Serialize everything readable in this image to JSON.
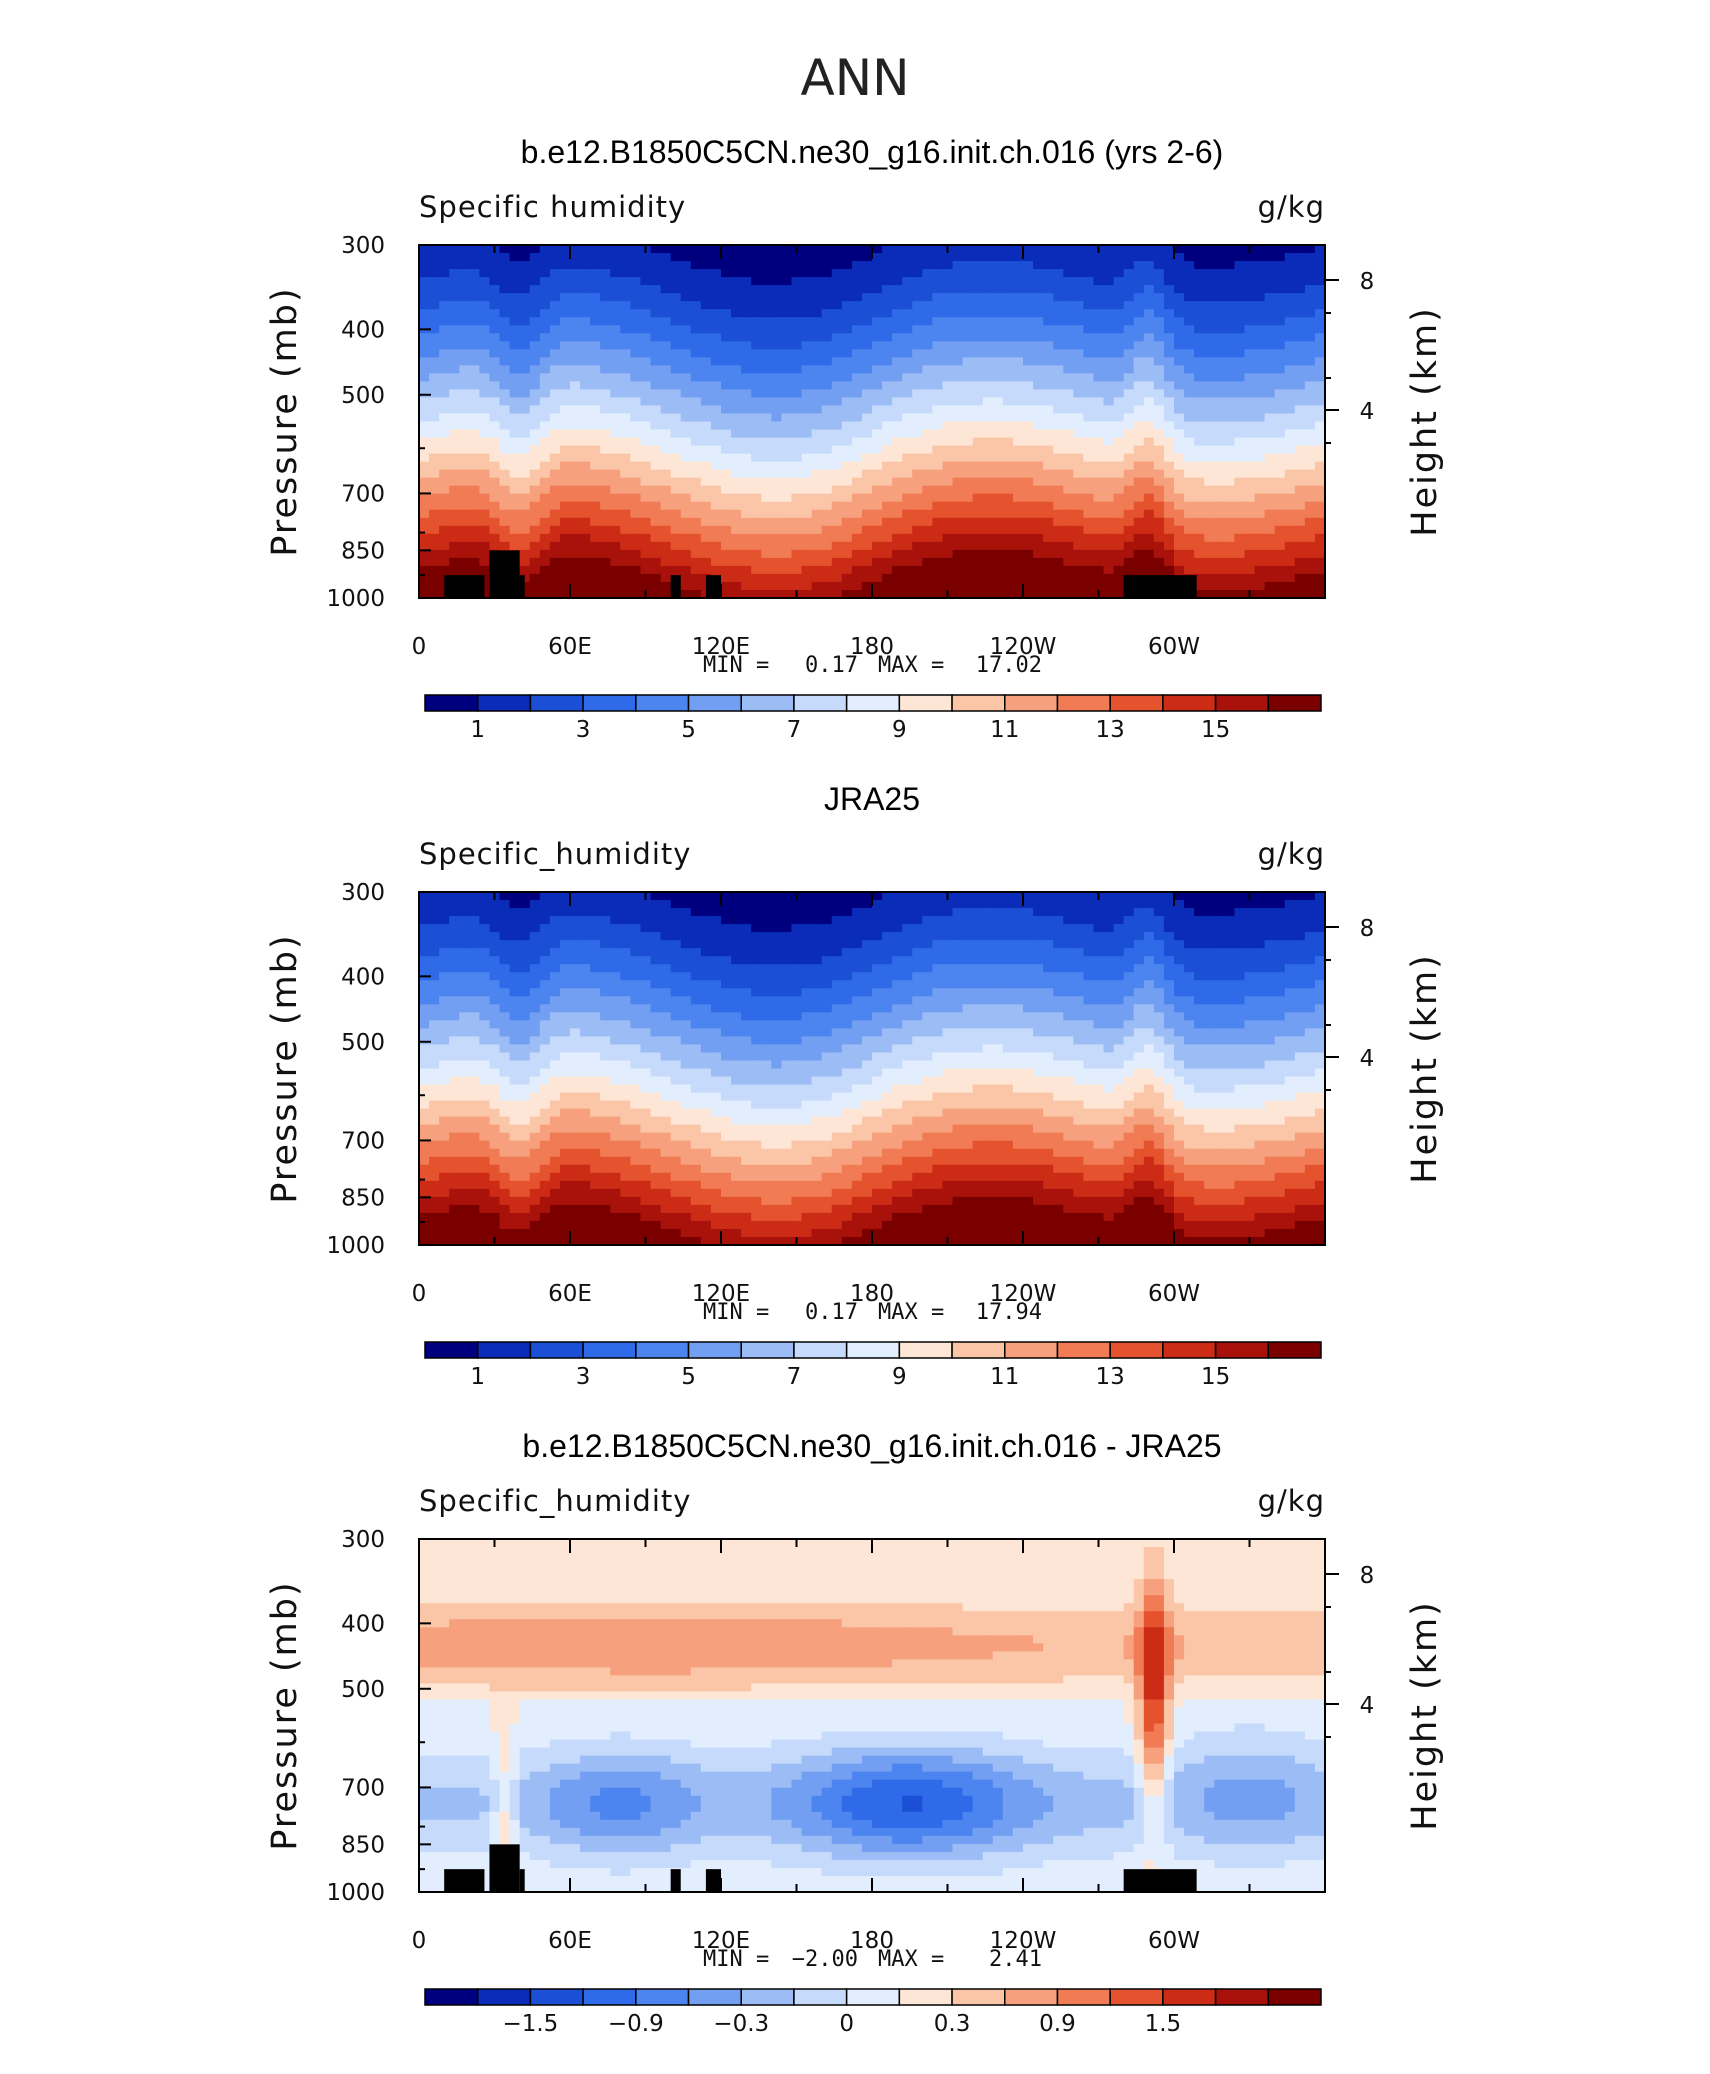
{
  "figure_title": "ANN",
  "chart_data": [
    {
      "type": "heatmap",
      "title": "b.e12.B1850C5CN.ne30_g16.init.ch.016 (yrs 2-6)",
      "left_label": "Specific humidity",
      "units": "g/kg",
      "ylabel": "Pressure (mb)",
      "ylabel_right": "Height (km)",
      "x_ticks": [
        "0",
        "60E",
        "120E",
        "180",
        "120W",
        "60W"
      ],
      "y_ticks": [
        "300",
        "400",
        "500",
        "700",
        "850",
        "1000"
      ],
      "y_ticks_right": [
        "8",
        "4"
      ],
      "stats": {
        "min_label": "MIN =",
        "min": "0.17",
        "max_label": "MAX =",
        "max": "17.02"
      },
      "colorbar_labels": [
        "1",
        "3",
        "5",
        "7",
        "9",
        "11",
        "13",
        "15"
      ],
      "levels": [
        0,
        1,
        2,
        3,
        4,
        5,
        6,
        7,
        8,
        9,
        10,
        11,
        12,
        13,
        14,
        15,
        16
      ],
      "topography": true
    },
    {
      "type": "heatmap",
      "title": "JRA25",
      "left_label": "Specific_humidity",
      "units": "g/kg",
      "ylabel": "Pressure (mb)",
      "ylabel_right": "Height (km)",
      "x_ticks": [
        "0",
        "60E",
        "120E",
        "180",
        "120W",
        "60W"
      ],
      "y_ticks": [
        "300",
        "400",
        "500",
        "700",
        "850",
        "1000"
      ],
      "y_ticks_right": [
        "8",
        "4"
      ],
      "stats": {
        "min_label": "MIN =",
        "min": "0.17",
        "max_label": "MAX =",
        "max": "17.94"
      },
      "colorbar_labels": [
        "1",
        "3",
        "5",
        "7",
        "9",
        "11",
        "13",
        "15"
      ],
      "levels": [
        0,
        1,
        2,
        3,
        4,
        5,
        6,
        7,
        8,
        9,
        10,
        11,
        12,
        13,
        14,
        15,
        16
      ],
      "topography": false
    },
    {
      "type": "heatmap",
      "title": "b.e12.B1850C5CN.ne30_g16.init.ch.016 - JRA25",
      "left_label": "Specific_humidity",
      "units": "g/kg",
      "ylabel": "Pressure (mb)",
      "ylabel_right": "Height (km)",
      "x_ticks": [
        "0",
        "60E",
        "120E",
        "180",
        "120W",
        "60W"
      ],
      "y_ticks": [
        "300",
        "400",
        "500",
        "700",
        "850",
        "1000"
      ],
      "y_ticks_right": [
        "8",
        "4"
      ],
      "stats": {
        "min_label": "MIN =",
        "min": "−2.00",
        "max_label": "MAX =",
        "max": "2.41"
      },
      "colorbar_labels": [
        "−1.5",
        "−0.9",
        "−0.3",
        "0",
        "0.3",
        "0.9",
        "1.5"
      ],
      "levels": [
        -2.4,
        -2.1,
        -1.8,
        -1.5,
        -1.2,
        -0.9,
        -0.6,
        -0.3,
        0,
        0.3,
        0.6,
        0.9,
        1.2,
        1.5,
        1.8,
        2.1,
        2.4
      ],
      "topography": true
    }
  ],
  "palette": [
    "#00007f",
    "#0a2cb8",
    "#1a4fd6",
    "#2f6ae8",
    "#4d85f0",
    "#739ff3",
    "#9cbcf6",
    "#c6dafb",
    "#e2eefd",
    "#fde6d6",
    "#fbc6a8",
    "#f7a07d",
    "#f07b54",
    "#e5522e",
    "#cc2b15",
    "#a8120b",
    "#7a0000"
  ]
}
